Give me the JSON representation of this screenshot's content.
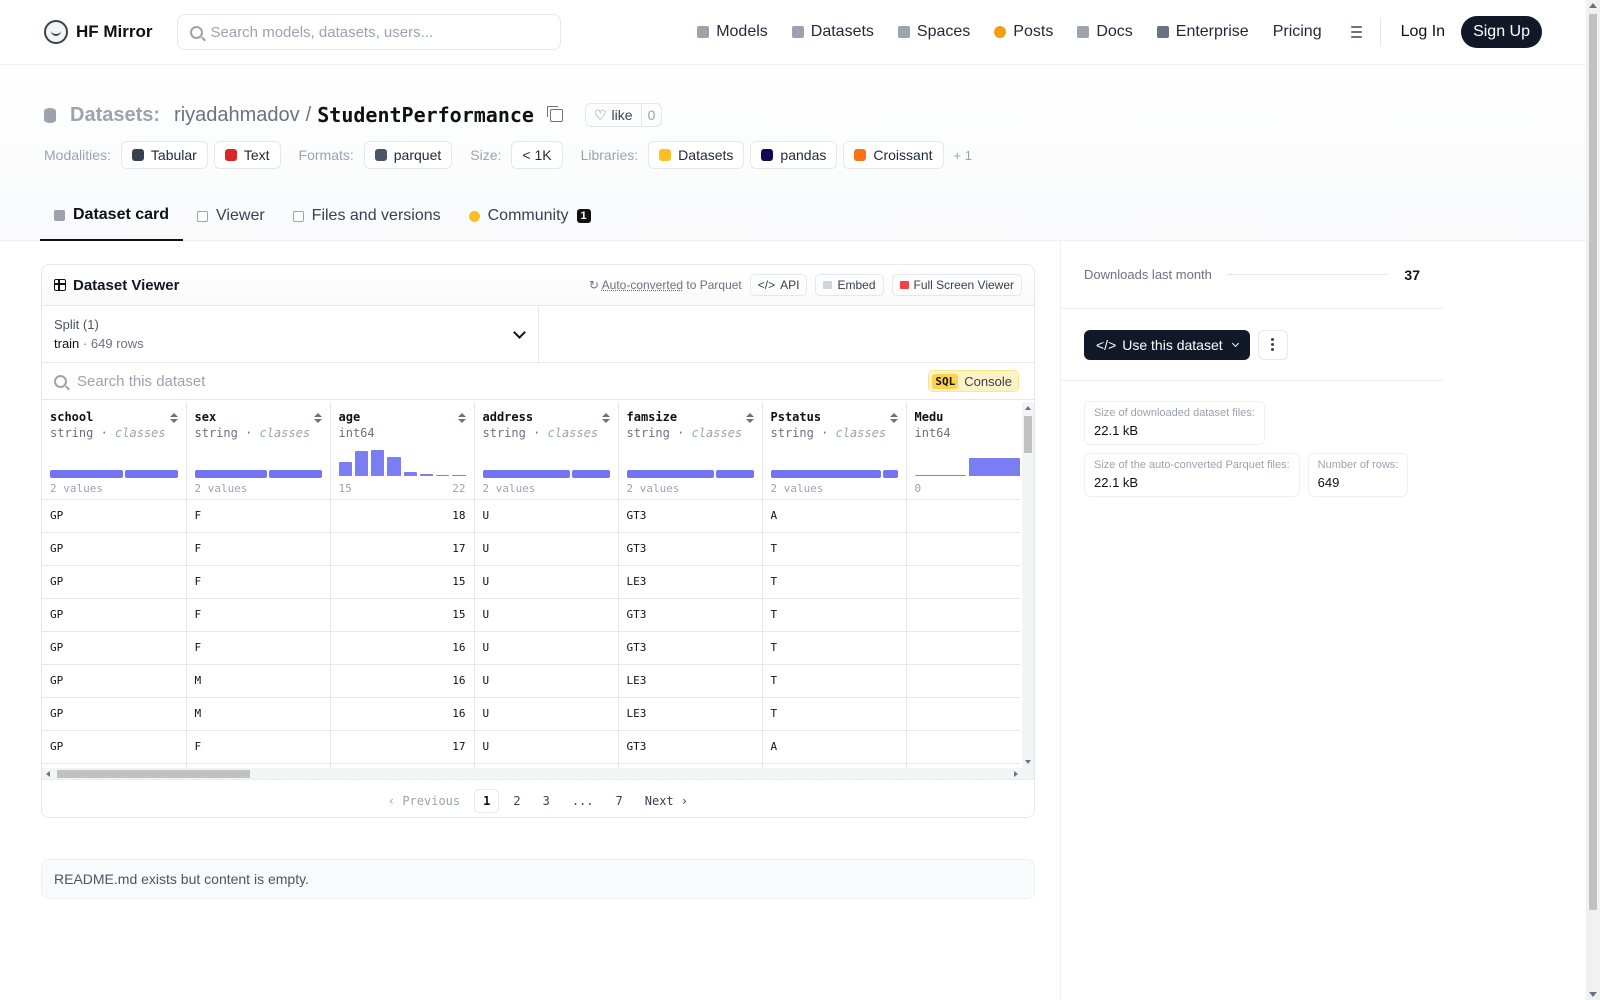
{
  "nav": {
    "brand": "HF Mirror",
    "search_placeholder": "Search models, datasets, users...",
    "links": [
      {
        "label": "Models",
        "icon": "cube-icon",
        "color": "#9ca3af"
      },
      {
        "label": "Datasets",
        "icon": "database-icon",
        "color": "#9ca3af"
      },
      {
        "label": "Spaces",
        "icon": "grid-icon",
        "color": "#9ca3af"
      },
      {
        "label": "Posts",
        "icon": "speech-icon",
        "color": "#f59e0b"
      },
      {
        "label": "Docs",
        "icon": "book-icon",
        "color": "#9ca3af"
      },
      {
        "label": "Enterprise",
        "icon": "enterprise-icon",
        "color": "#6b7280"
      },
      {
        "label": "Pricing"
      }
    ],
    "login": "Log In",
    "signup": "Sign Up"
  },
  "header": {
    "section": "Datasets:",
    "owner": "riyadahmadov",
    "separator": "/",
    "name": "StudentPerformance",
    "like_label": "like",
    "like_count": "0",
    "modalities_label": "Modalities:",
    "modalities": [
      {
        "label": "Tabular",
        "color": "#374151"
      },
      {
        "label": "Text",
        "color": "#dc2626"
      }
    ],
    "formats_label": "Formats:",
    "formats": [
      {
        "label": "parquet",
        "color": "#4b5563"
      }
    ],
    "size_label": "Size:",
    "size": "< 1K",
    "libraries_label": "Libraries:",
    "libraries": [
      {
        "label": "Datasets",
        "color": "#fbbf24"
      },
      {
        "label": "pandas",
        "color": "#150458"
      },
      {
        "label": "Croissant",
        "color": "#f97316"
      }
    ],
    "libraries_more": "+ 1",
    "tabs": [
      {
        "label": "Dataset card",
        "active": true
      },
      {
        "label": "Viewer"
      },
      {
        "label": "Files and versions"
      },
      {
        "label": "Community",
        "badge": "1"
      }
    ]
  },
  "viewer": {
    "title": "Dataset Viewer",
    "auto_converted": "Auto-converted",
    "to_parquet": "to Parquet",
    "api": "API",
    "embed": "Embed",
    "fullscreen": "Full Screen Viewer",
    "split_label": "Split (1)",
    "split_name": "train",
    "split_dot": "·",
    "split_rows": "649 rows",
    "search_placeholder": "Search this dataset",
    "sql_badge": "SQL",
    "sql_label": "Console",
    "columns": [
      {
        "name": "school",
        "type": "string",
        "sub": "classes",
        "kind": "class",
        "bars": [
          58,
          42
        ],
        "footer_left": "2 values"
      },
      {
        "name": "sex",
        "type": "string",
        "sub": "classes",
        "kind": "class",
        "bars": [
          58,
          42
        ],
        "footer_left": "2 values"
      },
      {
        "name": "age",
        "type": "int64",
        "kind": "hist",
        "bars": [
          55,
          95,
          100,
          75,
          15,
          6,
          3,
          3
        ],
        "footer_left": "15",
        "footer_right": "22"
      },
      {
        "name": "address",
        "type": "string",
        "sub": "classes",
        "kind": "class",
        "bars": [
          70,
          30
        ],
        "footer_left": "2 values"
      },
      {
        "name": "famsize",
        "type": "string",
        "sub": "classes",
        "kind": "class",
        "bars": [
          70,
          30
        ],
        "footer_left": "2 values"
      },
      {
        "name": "Pstatus",
        "type": "string",
        "sub": "classes",
        "kind": "class",
        "bars": [
          88,
          12
        ],
        "footer_left": "2 values"
      },
      {
        "name": "Medu",
        "type": "int64",
        "kind": "hist",
        "bars": [
          5,
          70,
          100,
          80,
          90
        ],
        "footer_left": "0"
      }
    ],
    "rows": [
      [
        "GP",
        "F",
        "18",
        "U",
        "GT3",
        "A",
        ""
      ],
      [
        "GP",
        "F",
        "17",
        "U",
        "GT3",
        "T",
        ""
      ],
      [
        "GP",
        "F",
        "15",
        "U",
        "LE3",
        "T",
        ""
      ],
      [
        "GP",
        "F",
        "15",
        "U",
        "GT3",
        "T",
        ""
      ],
      [
        "GP",
        "F",
        "16",
        "U",
        "GT3",
        "T",
        ""
      ],
      [
        "GP",
        "M",
        "16",
        "U",
        "LE3",
        "T",
        ""
      ],
      [
        "GP",
        "M",
        "16",
        "U",
        "LE3",
        "T",
        ""
      ],
      [
        "GP",
        "F",
        "17",
        "U",
        "GT3",
        "A",
        ""
      ],
      [
        "",
        "",
        "",
        "",
        "",
        "",
        ""
      ]
    ],
    "pager": {
      "prev": "Previous",
      "pages": [
        "1",
        "2",
        "3",
        "...",
        "7"
      ],
      "current": "1",
      "next": "Next"
    }
  },
  "readme": "README.md exists but content is empty.",
  "sidebar": {
    "downloads_label": "Downloads last month",
    "downloads_value": "37",
    "use_button": "Use this dataset",
    "stats": [
      {
        "label": "Size of downloaded dataset files:",
        "value": "22.1 kB"
      },
      {
        "label": "Size of the auto-converted Parquet files:",
        "value": "22.1 kB"
      },
      {
        "label": "Number of rows:",
        "value": "649"
      }
    ]
  },
  "accent": "#6366f1"
}
